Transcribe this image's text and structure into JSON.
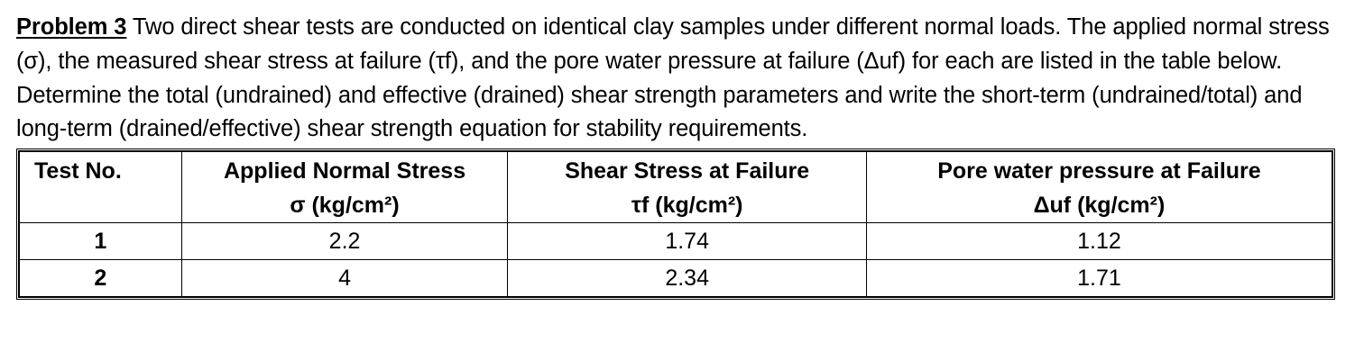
{
  "problem": {
    "label": "Problem 3",
    "text": " Two direct shear tests are conducted on identical clay samples under different normal loads. The applied normal stress (σ), the measured shear stress at failure (τf), and the pore water pressure at failure (Δuf) for each are listed in the table below. Determine the total (undrained) and effective (drained) shear strength parameters and write the short-term (undrained/total) and long-term (drained/effective) shear strength equation for stability requirements."
  },
  "table": {
    "headers": [
      {
        "line1": "Test No.",
        "line2": ""
      },
      {
        "line1": "Applied Normal Stress",
        "line2": "σ (kg/cm²)"
      },
      {
        "line1": "Shear Stress at Failure",
        "line2": "τf (kg/cm²)"
      },
      {
        "line1": "Pore water pressure at Failure",
        "line2": "Δuf (kg/cm²)"
      }
    ],
    "rows": [
      {
        "test_no": "1",
        "normal_stress": "2.2",
        "shear_stress": "1.74",
        "pore_pressure": "1.12"
      },
      {
        "test_no": "2",
        "normal_stress": "4",
        "shear_stress": "2.34",
        "pore_pressure": "1.71"
      }
    ]
  }
}
